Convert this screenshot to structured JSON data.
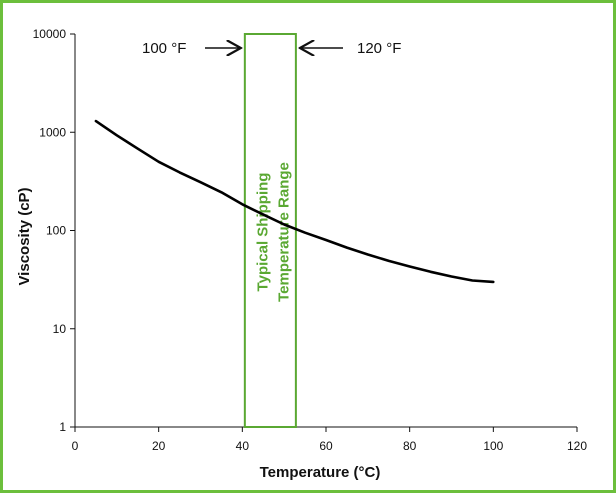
{
  "chart_data": {
    "type": "line",
    "title": "",
    "xlabel": "Temperature (°C)",
    "ylabel": "Viscosity (cP)",
    "xlim": [
      0,
      120
    ],
    "ylim": [
      1,
      10000
    ],
    "yscale": "log",
    "xticks": [
      "0",
      "20",
      "40",
      "60",
      "80",
      "100",
      "120"
    ],
    "yticks": [
      "1",
      "10",
      "100",
      "1000",
      "10000"
    ],
    "grid": false,
    "series": [
      {
        "x": [
          5,
          10,
          15,
          20,
          25,
          30,
          35,
          40,
          45,
          50,
          55,
          60,
          65,
          70,
          75,
          80,
          85,
          90,
          95,
          100
        ],
        "values": [
          1300,
          930,
          680,
          500,
          390,
          310,
          245,
          185,
          145,
          115,
          95,
          80,
          67,
          57,
          49,
          43,
          38,
          34,
          31,
          30
        ],
        "color": "#000000"
      }
    ],
    "band": {
      "x_start": 40.6,
      "x_end": 52.8,
      "label_line1": "Typical Shipping",
      "label_line2": "Temperature  Range",
      "color": "#5aa832"
    },
    "annotations": {
      "left": {
        "text": "100 °F",
        "arrow": "right"
      },
      "right": {
        "text": "120 °F",
        "arrow": "left"
      }
    }
  }
}
